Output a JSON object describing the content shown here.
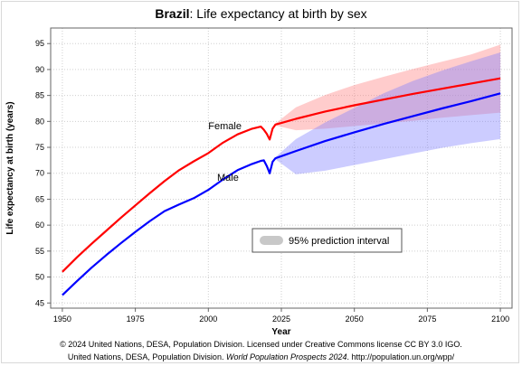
{
  "title": {
    "country": "Brazil",
    "rest": ": Life expectancy at birth by sex"
  },
  "footer": {
    "line1": "© 2024 United Nations, DESA, Population Division. Licensed under Creative Commons license CC BY 3.0 IGO.",
    "line2_a": "United Nations, DESA, Population Division. ",
    "line2_b": "World Population Prospects 2024",
    "line2_c": ". http://population.un.org/wpp/"
  },
  "chart_data": {
    "type": "line",
    "title": "Brazil: Life expectancy at birth by sex",
    "xlabel": "Year",
    "ylabel": "Life expectancy at birth (years)",
    "xlim": [
      1946,
      2104
    ],
    "ylim": [
      44,
      98
    ],
    "xticks": [
      1950,
      1975,
      2000,
      2025,
      2050,
      2075,
      2100
    ],
    "yticks": [
      45,
      50,
      55,
      60,
      65,
      70,
      75,
      80,
      85,
      90,
      95
    ],
    "grid": true,
    "series": [
      {
        "name": "Female",
        "color": "#ff0000",
        "x": [
          1950,
          1955,
          1960,
          1965,
          1970,
          1975,
          1980,
          1985,
          1990,
          1995,
          2000,
          2005,
          2010,
          2015,
          2018,
          2019,
          2020,
          2021,
          2022,
          2023,
          2025,
          2030,
          2040,
          2050,
          2060,
          2070,
          2080,
          2090,
          2100
        ],
        "y": [
          51.0,
          53.8,
          56.4,
          58.9,
          61.4,
          63.8,
          66.2,
          68.5,
          70.6,
          72.3,
          73.9,
          75.9,
          77.5,
          78.6,
          79.0,
          78.4,
          77.6,
          76.5,
          78.6,
          79.4,
          79.7,
          80.5,
          81.9,
          83.1,
          84.2,
          85.3,
          86.3,
          87.3,
          88.3
        ]
      },
      {
        "name": "Male",
        "color": "#0000ff",
        "x": [
          1950,
          1955,
          1960,
          1965,
          1970,
          1975,
          1980,
          1985,
          1990,
          1995,
          2000,
          2005,
          2010,
          2015,
          2018,
          2019,
          2020,
          2021,
          2022,
          2023,
          2025,
          2030,
          2040,
          2050,
          2060,
          2070,
          2080,
          2090,
          2100
        ],
        "y": [
          46.5,
          49.2,
          51.8,
          54.2,
          56.5,
          58.7,
          60.8,
          62.7,
          64.0,
          65.2,
          66.8,
          68.8,
          70.6,
          71.8,
          72.4,
          72.5,
          71.4,
          70.0,
          72.2,
          72.9,
          73.3,
          74.3,
          76.2,
          77.9,
          79.5,
          81.0,
          82.5,
          83.9,
          85.4
        ]
      }
    ],
    "intervals": [
      {
        "series": "Female",
        "color": "#ff7f7f",
        "x": [
          2023,
          2030,
          2040,
          2050,
          2060,
          2070,
          2080,
          2090,
          2100
        ],
        "lower": [
          79.2,
          78.3,
          78.6,
          79.1,
          79.6,
          80.1,
          80.7,
          81.2,
          81.7
        ],
        "upper": [
          79.6,
          82.7,
          85.1,
          87.0,
          88.6,
          90.1,
          91.5,
          92.9,
          94.8
        ]
      },
      {
        "series": "Male",
        "color": "#7f7fff",
        "x": [
          2023,
          2030,
          2040,
          2050,
          2060,
          2070,
          2080,
          2090,
          2100
        ],
        "lower": [
          72.7,
          69.8,
          70.5,
          71.6,
          72.7,
          73.8,
          74.9,
          75.8,
          76.6
        ],
        "upper": [
          73.1,
          76.6,
          79.8,
          82.6,
          85.4,
          87.8,
          89.8,
          91.6,
          93.3
        ]
      }
    ],
    "series_labels": [
      {
        "text": "Female",
        "series": "Female"
      },
      {
        "text": "Male",
        "series": "Male"
      }
    ],
    "legend": {
      "position": "center-right",
      "label": "95% prediction interval"
    }
  }
}
